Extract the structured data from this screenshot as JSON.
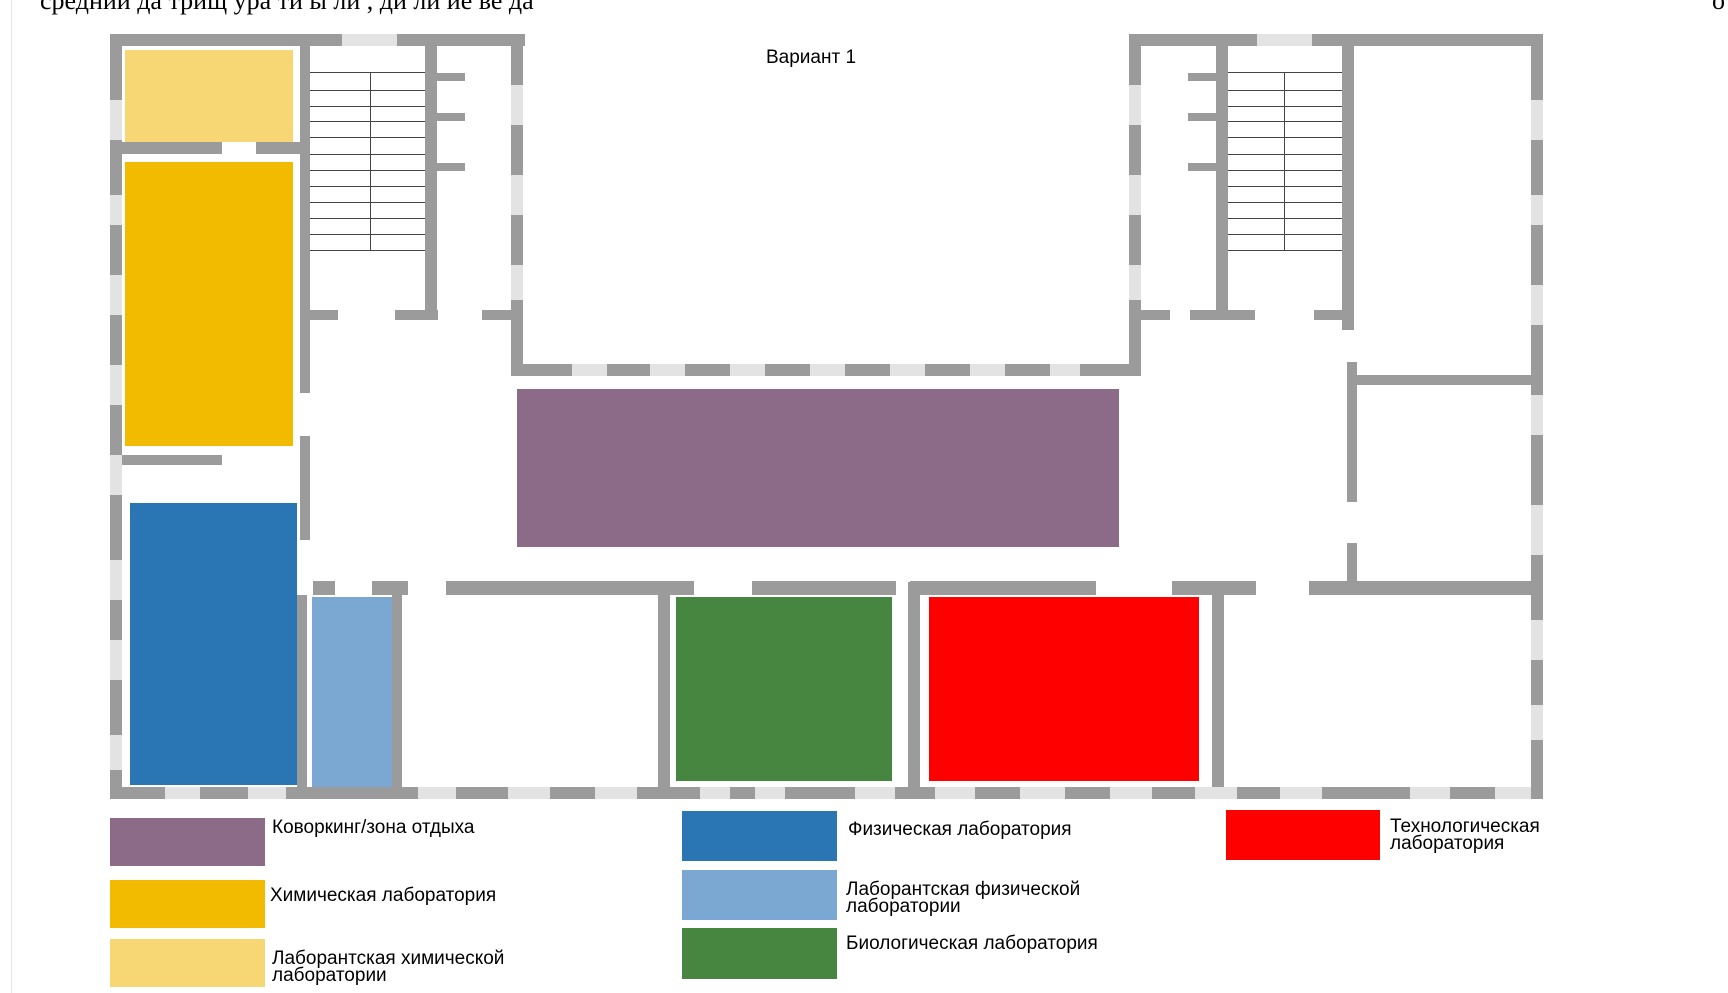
{
  "header": {
    "cut_text_left": "средний да   трищ   ура   ти   ы   ли   ,   ди  ли   ие   ве   да",
    "cut_text_right": "о"
  },
  "plan": {
    "title": "Вариант 1"
  },
  "colors": {
    "coworking": "#8c6b89",
    "chem_lab": "#f2bb00",
    "chem_assistant": "#f7d774",
    "phys_lab": "#2a75b3",
    "phys_assistant": "#7aa8d3",
    "bio_lab": "#468641",
    "tech_lab": "#ff0000",
    "wall": "#9b9b9b",
    "window": "#e3e3e3"
  },
  "legend": [
    {
      "id": "coworking",
      "label": "Коворкинг/зона отдыха"
    },
    {
      "id": "chem_lab",
      "label": "Химическая лаборатория"
    },
    {
      "id": "chem_assistant",
      "label": "Лаборантская химической\nлаборатории"
    },
    {
      "id": "phys_lab",
      "label": "Физическая лаборатория"
    },
    {
      "id": "phys_assistant",
      "label": "Лаборантская физической\nлаборатории"
    },
    {
      "id": "bio_lab",
      "label": "Биологическая лаборатория"
    },
    {
      "id": "tech_lab",
      "label": "Технологическая\nлаборатория"
    }
  ]
}
